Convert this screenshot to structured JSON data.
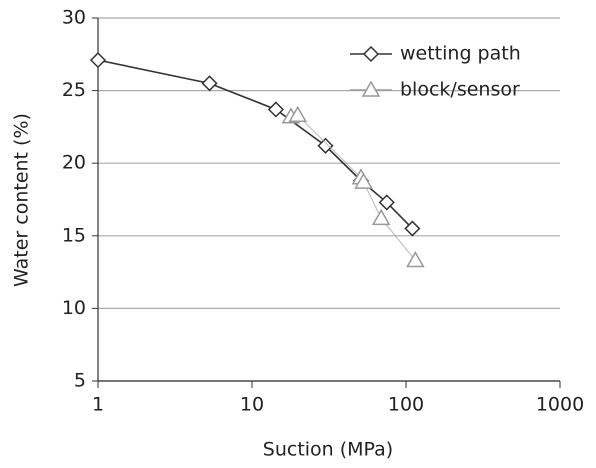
{
  "chart_data": {
    "type": "line",
    "x_label": "Suction (MPa)",
    "y_label": "Water content (%)",
    "xscale": "log",
    "xlim": [
      1,
      1000
    ],
    "xticks": [
      1,
      10,
      100,
      1000
    ],
    "ylim": [
      5,
      30
    ],
    "yticks": [
      5,
      10,
      15,
      20,
      25,
      30
    ],
    "grid": true,
    "legend": "upper right",
    "series": [
      {
        "name": "wetting path",
        "color": "#333333",
        "marker": "diamond",
        "x": [
          1,
          5.3,
          14.3,
          30,
          51,
          75,
          110
        ],
        "values": [
          27.1,
          25.5,
          23.7,
          21.2,
          18.8,
          17.3,
          15.5
        ]
      },
      {
        "name": "block/sensor",
        "color": "#999999",
        "marker": "triangle",
        "x": [
          17.9,
          19.8,
          51,
          53,
          69,
          115
        ],
        "values": [
          23.2,
          23.3,
          19.0,
          18.7,
          16.2,
          13.3
        ]
      }
    ]
  }
}
